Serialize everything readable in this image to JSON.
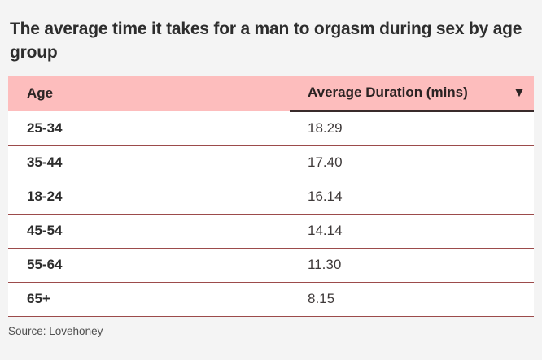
{
  "title": "The average time it takes for a man to orgasm during sex by age group",
  "table": {
    "columns": [
      {
        "label": "Age",
        "sorted": false
      },
      {
        "label": "Average Duration (mins)",
        "sorted": true,
        "sort_direction": "desc"
      }
    ],
    "sort_icon": "▼",
    "rows": [
      {
        "age": "25-34",
        "duration": "18.29"
      },
      {
        "age": "35-44",
        "duration": "17.40"
      },
      {
        "age": "18-24",
        "duration": "16.14"
      },
      {
        "age": "45-54",
        "duration": "14.14"
      },
      {
        "age": "55-64",
        "duration": "11.30"
      },
      {
        "age": "65+",
        "duration": "8.15"
      }
    ],
    "colors": {
      "header_background": "#fdbdbd",
      "row_background": "#ffffff",
      "row_divider": "#9c4b4b",
      "sorted_column_underline": "#392b2b",
      "page_background": "#f4f4f4"
    }
  },
  "source": "Source: Lovehoney",
  "chart_data": {
    "type": "table",
    "title": "The average time it takes for a man to orgasm during sex by age group",
    "columns": [
      "Age",
      "Average Duration (mins)"
    ],
    "rows": [
      [
        "25-34",
        18.29
      ],
      [
        "35-44",
        17.4
      ],
      [
        "18-24",
        16.14
      ],
      [
        "45-54",
        14.14
      ],
      [
        "55-64",
        11.3
      ],
      [
        "65+",
        8.15
      ]
    ],
    "sort": {
      "column": "Average Duration (mins)",
      "direction": "desc"
    },
    "source": "Source: Lovehoney"
  }
}
